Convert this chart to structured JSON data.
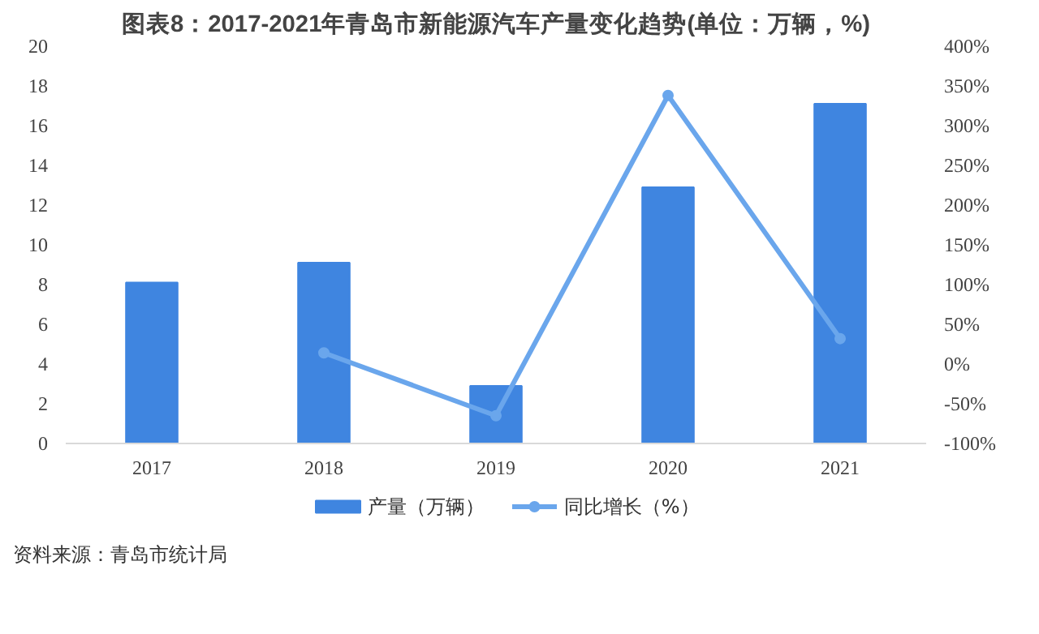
{
  "chart_data": {
    "type": "bar",
    "title": "图表8：2017-2021年青岛市新能源汽车产量变化趋势(单位：万辆，%)",
    "categories": [
      "2017",
      "2018",
      "2019",
      "2020",
      "2021"
    ],
    "series": [
      {
        "name": "产量（万辆）",
        "color": "#3f85e0",
        "values": [
          8.1,
          9.1,
          2.9,
          12.9,
          17.1
        ]
      },
      {
        "name": "同比增长（%）",
        "type": "line",
        "axis": "y2",
        "color": "#6aa6ec",
        "marker": "circle",
        "values": [
          null,
          14,
          -65,
          338,
          32
        ]
      }
    ],
    "ylim": [
      0,
      20
    ],
    "yticks": [
      0,
      2,
      4,
      6,
      8,
      10,
      12,
      14,
      16,
      18,
      20
    ],
    "y2lim": [
      -100,
      400
    ],
    "y2ticks": [
      {
        "value": -100,
        "label": "-100%"
      },
      {
        "value": -50,
        "label": "-50%"
      },
      {
        "value": 0,
        "label": "0%"
      },
      {
        "value": 50,
        "label": "50%"
      },
      {
        "value": 100,
        "label": "100%"
      },
      {
        "value": 150,
        "label": "150%"
      },
      {
        "value": 200,
        "label": "200%"
      },
      {
        "value": 250,
        "label": "250%"
      },
      {
        "value": 300,
        "label": "300%"
      },
      {
        "value": 350,
        "label": "350%"
      },
      {
        "value": 400,
        "label": "400%"
      }
    ],
    "grid": false,
    "legend": "bottom",
    "annotations": [
      "资料来源：青岛市统计局"
    ]
  }
}
